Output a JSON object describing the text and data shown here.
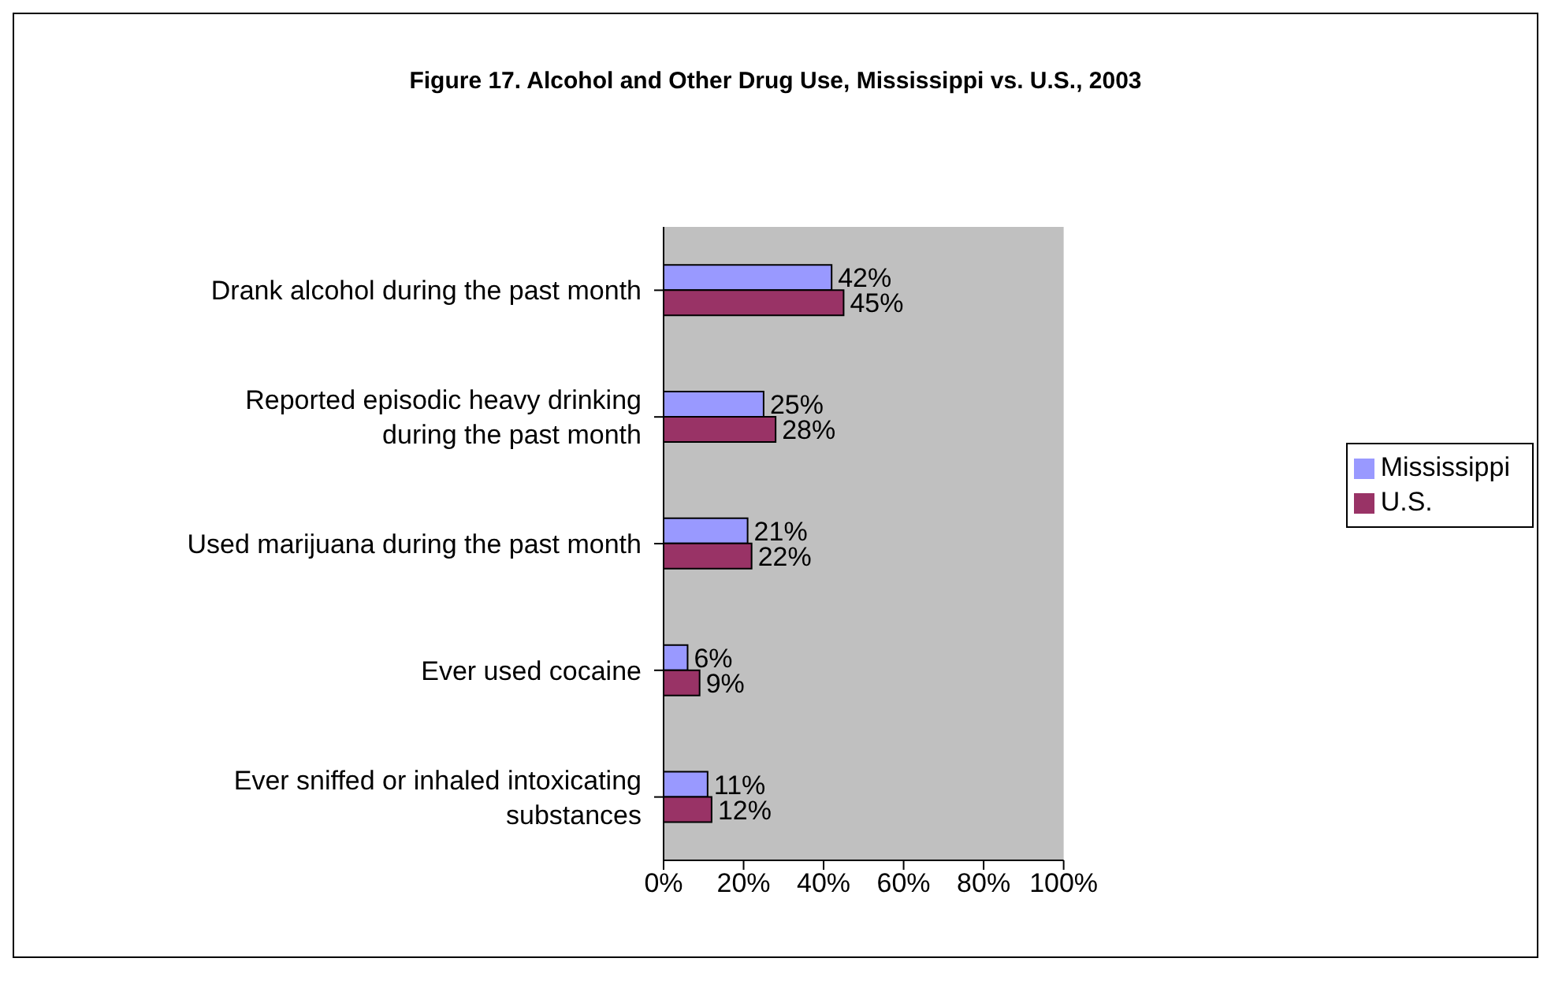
{
  "chart_data": {
    "type": "bar",
    "orientation": "horizontal",
    "title": "Figure 17.  Alcohol and Other Drug Use, Mississippi vs. U.S., 2003",
    "categories": [
      "Drank alcohol during the past month",
      "Reported episodic heavy drinking during the past month",
      "Used marijuana during the past month",
      "Ever used cocaine",
      "Ever sniffed or inhaled intoxicating substances"
    ],
    "series": [
      {
        "name": "Mississippi",
        "color": "#9999ff",
        "values": [
          42,
          25,
          21,
          6,
          11
        ],
        "value_labels": [
          "42%",
          "25%",
          "21%",
          "6%",
          "11%"
        ]
      },
      {
        "name": "U.S.",
        "color": "#993366",
        "values": [
          45,
          28,
          22,
          9,
          12
        ],
        "value_labels": [
          "45%",
          "28%",
          "22%",
          "9%",
          "12%"
        ]
      }
    ],
    "xlim": [
      0,
      100
    ],
    "xticks": [
      {
        "value": 0,
        "label": "0%"
      },
      {
        "value": 20,
        "label": "20%"
      },
      {
        "value": 40,
        "label": "40%"
      },
      {
        "value": 60,
        "label": "60%"
      },
      {
        "value": 80,
        "label": "80%"
      },
      {
        "value": 100,
        "label": "100%"
      }
    ],
    "grid": false,
    "legend": "right"
  }
}
